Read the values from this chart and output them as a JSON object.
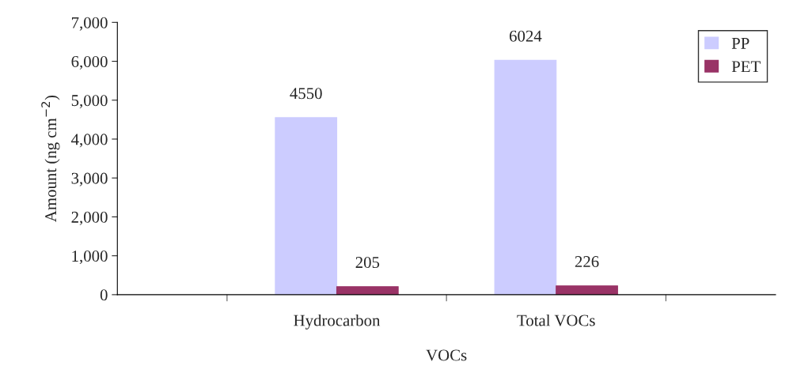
{
  "chart_data": {
    "type": "bar",
    "xlabel": "VOCs",
    "ylabel": "Amount (ng cm$^{−2}$)",
    "categories": [
      "Hydrocarbon",
      "Total VOCs"
    ],
    "series": [
      {
        "name": "PP",
        "color": "#ccccff",
        "values": [
          4550,
          6024
        ]
      },
      {
        "name": "PET",
        "color": "#993366",
        "values": [
          205,
          226
        ]
      }
    ],
    "ylim": [
      0,
      7000
    ],
    "yticks": [
      {
        "value": 0,
        "label": "0"
      },
      {
        "value": 1000,
        "label": "1,000"
      },
      {
        "value": 2000,
        "label": "2,000"
      },
      {
        "value": 3000,
        "label": "3,000"
      },
      {
        "value": 4000,
        "label": "4,000"
      },
      {
        "value": 5000,
        "label": "5,000"
      },
      {
        "value": 6000,
        "label": "6,000"
      },
      {
        "value": 7000,
        "label": "7,000"
      }
    ],
    "data_labels": true,
    "legend": "top right",
    "grid": false
  }
}
